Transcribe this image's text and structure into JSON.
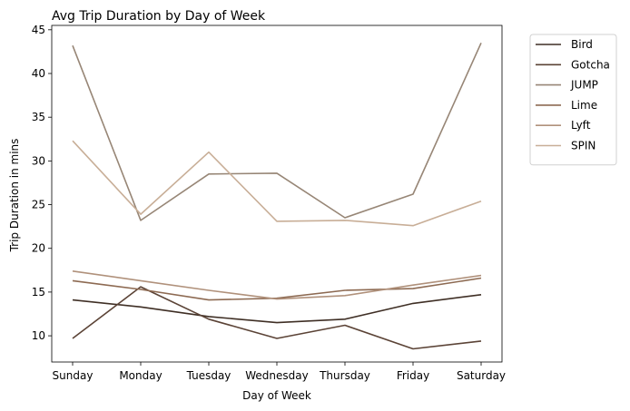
{
  "chart_data": {
    "type": "line",
    "title": "Avg Trip Duration by Day of Week",
    "xlabel": "Day of Week",
    "ylabel": "Trip Duration in mins",
    "categories": [
      "Sunday",
      "Monday",
      "Tuesday",
      "Wednesday",
      "Thursday",
      "Friday",
      "Saturday"
    ],
    "ylim": [
      7,
      45.5
    ],
    "yticks": [
      10,
      15,
      20,
      25,
      30,
      35,
      40,
      45
    ],
    "grid": false,
    "legend_position": "outside-top-right",
    "series": [
      {
        "name": "Bird",
        "color": "#3f2f25",
        "values": [
          14.1,
          13.3,
          12.2,
          11.5,
          11.9,
          13.7,
          14.7
        ]
      },
      {
        "name": "Gotcha",
        "color": "#5b4336",
        "values": [
          9.7,
          15.6,
          11.9,
          9.7,
          11.2,
          8.5,
          9.4
        ]
      },
      {
        "name": "JUMP",
        "color": "#978676",
        "values": [
          43.2,
          23.2,
          28.5,
          28.6,
          23.5,
          26.2,
          43.5
        ]
      },
      {
        "name": "Lime",
        "color": "#8d6a52",
        "values": [
          16.3,
          15.3,
          14.1,
          14.3,
          15.2,
          15.4,
          16.6
        ]
      },
      {
        "name": "Lyft",
        "color": "#b0917b",
        "values": [
          17.4,
          16.3,
          15.2,
          14.2,
          14.6,
          15.8,
          16.9
        ]
      },
      {
        "name": "SPIN",
        "color": "#c8ae97",
        "values": [
          32.3,
          23.9,
          31.0,
          23.1,
          23.2,
          22.6,
          25.4
        ]
      }
    ]
  }
}
